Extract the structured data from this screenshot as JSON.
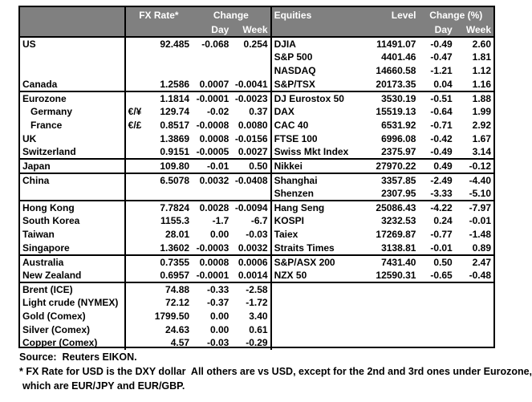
{
  "colors": {
    "header_bg": "#808080",
    "header_text": "#ffffff",
    "border": "#000000",
    "body_bg": "#ffffff"
  },
  "header": {
    "fx_rate": "FX Rate*",
    "change": "Change",
    "day": "Day",
    "week": "Week",
    "equities": "Equities",
    "level": "Level",
    "change_pct": "Change (%)",
    "day_right": "Day",
    "week_right": "Week"
  },
  "rows": [
    {
      "name": "US",
      "sym": "",
      "fx": "92.485",
      "fx_day": "-0.068",
      "fx_week": "0.254",
      "eq": "DJIA",
      "level": "11491.07",
      "eq_day": "-0.49",
      "eq_week": "2.60"
    },
    {
      "name": "",
      "sym": "",
      "fx": "",
      "fx_day": "",
      "fx_week": "",
      "eq": "S&P 500",
      "level": "4401.46",
      "eq_day": "-0.47",
      "eq_week": "1.81"
    },
    {
      "name": "",
      "sym": "",
      "fx": "",
      "fx_day": "",
      "fx_week": "",
      "eq": "NASDAQ",
      "level": "14660.58",
      "eq_day": "-1.21",
      "eq_week": "1.12"
    },
    {
      "name": "Canada",
      "sym": "",
      "fx": "1.2586",
      "fx_day": "0.0007",
      "fx_week": "-0.0041",
      "eq": "S&P/TSX",
      "level": "20173.35",
      "eq_day": "0.04",
      "eq_week": "1.16"
    },
    {
      "name": "Eurozone",
      "sym": "",
      "fx": "1.1814",
      "fx_day": "-0.0001",
      "fx_week": "-0.0023",
      "eq": "DJ Eurostox 50",
      "level": "3530.19",
      "eq_day": "-0.51",
      "eq_week": "1.88",
      "sep": true
    },
    {
      "name": "Germany",
      "sym": "€/¥",
      "fx": "129.74",
      "fx_day": "-0.02",
      "fx_week": "0.37",
      "eq": "DAX",
      "level": "15519.13",
      "eq_day": "-0.64",
      "eq_week": "1.99",
      "indent": true
    },
    {
      "name": "France",
      "sym": "€/£",
      "fx": "0.8517",
      "fx_day": "-0.0008",
      "fx_week": "0.0080",
      "eq": "CAC 40",
      "level": "6531.92",
      "eq_day": "-0.71",
      "eq_week": "2.92",
      "indent": true
    },
    {
      "name": "UK",
      "sym": "",
      "fx": "1.3869",
      "fx_day": "0.0008",
      "fx_week": "-0.0156",
      "eq": "FTSE 100",
      "level": "6996.08",
      "eq_day": "-0.42",
      "eq_week": "1.67"
    },
    {
      "name": "Switzerland",
      "sym": "",
      "fx": "0.9151",
      "fx_day": "-0.0005",
      "fx_week": "0.0027",
      "eq": "Swiss Mkt Index",
      "level": "2375.97",
      "eq_day": "-0.49",
      "eq_week": "3.14"
    },
    {
      "name": "Japan",
      "sym": "",
      "fx": "109.80",
      "fx_day": "-0.01",
      "fx_week": "0.50",
      "eq": "Nikkei",
      "level": "27970.22",
      "eq_day": "0.49",
      "eq_week": "-0.12",
      "sep": true
    },
    {
      "name": "China",
      "sym": "",
      "fx": "6.5078",
      "fx_day": "0.0032",
      "fx_week": "-0.0408",
      "eq": "Shanghai",
      "level": "3357.85",
      "eq_day": "-2.49",
      "eq_week": "-4.40",
      "sep": true
    },
    {
      "name": "",
      "sym": "",
      "fx": "",
      "fx_day": "",
      "fx_week": "",
      "eq": "Shenzen",
      "level": "2307.95",
      "eq_day": "-3.33",
      "eq_week": "-5.10"
    },
    {
      "name": "Hong Kong",
      "sym": "",
      "fx": "7.7824",
      "fx_day": "0.0028",
      "fx_week": "-0.0094",
      "eq": "Hang Seng",
      "level": "25086.43",
      "eq_day": "-4.22",
      "eq_week": "-7.97",
      "sep": true
    },
    {
      "name": "South Korea",
      "sym": "",
      "fx": "1155.3",
      "fx_day": "-1.7",
      "fx_week": "-6.7",
      "eq": "KOSPI",
      "level": "3232.53",
      "eq_day": "0.24",
      "eq_week": "-0.01"
    },
    {
      "name": "Taiwan",
      "sym": "",
      "fx": "28.01",
      "fx_day": "0.00",
      "fx_week": "-0.03",
      "eq": "Taiex",
      "level": "17269.87",
      "eq_day": "-0.77",
      "eq_week": "-1.48"
    },
    {
      "name": "Singapore",
      "sym": "",
      "fx": "1.3602",
      "fx_day": "-0.0003",
      "fx_week": "0.0032",
      "eq": "Straits Times",
      "level": "3138.81",
      "eq_day": "-0.01",
      "eq_week": "0.89"
    },
    {
      "name": "Australia",
      "sym": "",
      "fx": "0.7355",
      "fx_day": "0.0008",
      "fx_week": "0.0006",
      "eq": "S&P/ASX 200",
      "level": "7431.40",
      "eq_day": "0.50",
      "eq_week": "2.47",
      "sep": true
    },
    {
      "name": "New Zealand",
      "sym": "",
      "fx": "0.6957",
      "fx_day": "-0.0001",
      "fx_week": "0.0014",
      "eq": "NZX 50",
      "level": "12590.31",
      "eq_day": "-0.65",
      "eq_week": "-0.48"
    },
    {
      "name": "Brent (ICE)",
      "sym": "",
      "fx": "74.88",
      "fx_day": "-0.33",
      "fx_week": "-2.58",
      "eq": "",
      "level": "",
      "eq_day": "",
      "eq_week": "",
      "sep": true
    },
    {
      "name": "Light crude (NYMEX)",
      "sym": "",
      "fx": "72.12",
      "fx_day": "-0.37",
      "fx_week": "-1.72",
      "eq": "",
      "level": "",
      "eq_day": "",
      "eq_week": ""
    },
    {
      "name": "Gold (Comex)",
      "sym": "",
      "fx": "1799.50",
      "fx_day": "0.00",
      "fx_week": "3.40",
      "eq": "",
      "level": "",
      "eq_day": "",
      "eq_week": ""
    },
    {
      "name": "Silver (Comex)",
      "sym": "",
      "fx": "24.63",
      "fx_day": "0.00",
      "fx_week": "0.61",
      "eq": "",
      "level": "",
      "eq_day": "",
      "eq_week": ""
    },
    {
      "name": "Copper (Comex)",
      "sym": "",
      "fx": "4.57",
      "fx_day": "-0.03",
      "fx_week": "-0.29",
      "eq": "",
      "level": "",
      "eq_day": "",
      "eq_week": ""
    }
  ],
  "footer": {
    "source": "Source:  Reuters EIKON.",
    "note1": "* FX Rate for USD is the DXY dollar  All others are vs USD, except for the 2nd and 3rd ones under Eurozone,",
    "note2": "which are EUR/JPY and EUR/GBP."
  }
}
